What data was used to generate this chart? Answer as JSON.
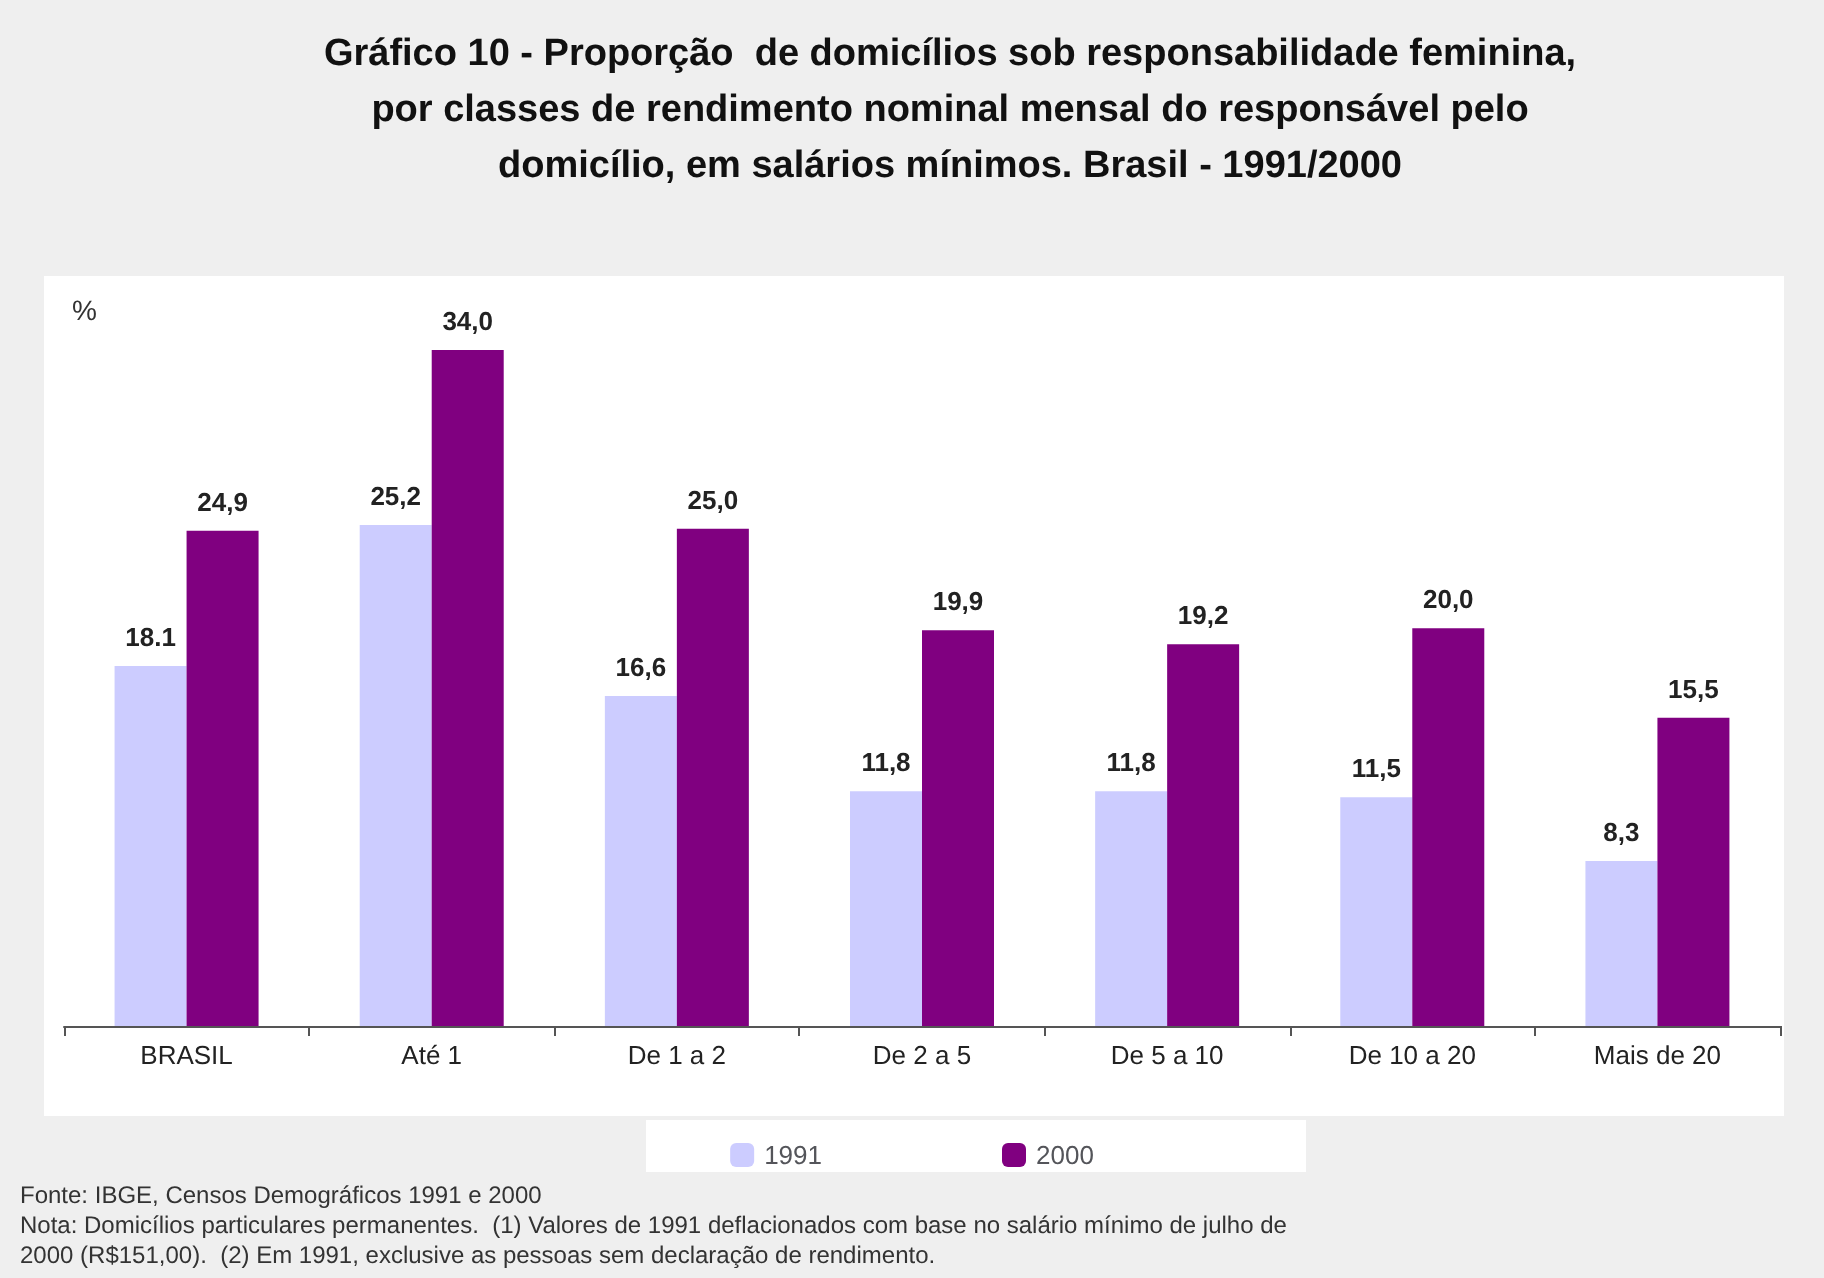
{
  "chart_data": {
    "type": "bar",
    "title": "Gráfico 10 - Proporção  de domicílios sob responsabilidade feminina,\npor classes de rendimento nominal mensal do responsável pelo\ndomicílio, em salários mínimos. Brasil - 1991/2000",
    "ylabel": "%",
    "categories": [
      "BRASIL",
      "Até 1",
      "De 1 a 2",
      "De 2 a 5",
      "De 5 a 10",
      "De 10 a 20",
      "Mais de 20"
    ],
    "series": [
      {
        "name": "1991",
        "color": "#ccccff",
        "values": [
          18.1,
          25.2,
          16.6,
          11.8,
          11.8,
          11.5,
          8.3
        ],
        "value_labels": [
          "18.1",
          "25,2",
          "16,6",
          "11,8",
          "11,8",
          "11,5",
          "8,3"
        ]
      },
      {
        "name": "2000",
        "color": "#800080",
        "values": [
          24.9,
          34.0,
          25.0,
          19.9,
          19.2,
          20.0,
          15.5
        ],
        "value_labels": [
          "24,9",
          "34,0",
          "25,0",
          "19,9",
          "19,2",
          "20,0",
          "15,5"
        ]
      }
    ],
    "legend": "bottom",
    "annotations": [
      "Fonte: IBGE, Censos Demográficos 1991 e 2000",
      "Nota: Domicílios particulares permanentes.  (1) Valores de 1991 deflacionados com base no salário mínimo de julho de\n2000 (R$151,00).  (2) Em 1991, exclusive as pessoas sem declaração de rendimento."
    ]
  }
}
